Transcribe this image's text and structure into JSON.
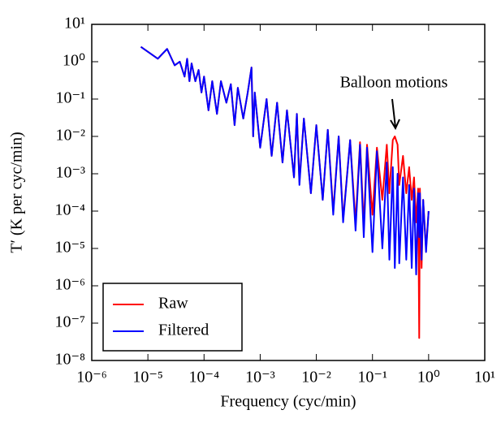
{
  "chart_data": {
    "type": "line",
    "xlabel": "Frequency (cyc/min)",
    "ylabel": "T′ (K per cyc/min)",
    "annotation": "Balloon motions",
    "xscale": "log",
    "yscale": "log",
    "xlim": [
      1e-06,
      10
    ],
    "ylim": [
      1e-08,
      10
    ],
    "xticks": [
      {
        "value": 1e-06,
        "label": "10⁻⁶"
      },
      {
        "value": 1e-05,
        "label": "10⁻⁵"
      },
      {
        "value": 0.0001,
        "label": "10⁻⁴"
      },
      {
        "value": 0.001,
        "label": "10⁻³"
      },
      {
        "value": 0.01,
        "label": "10⁻²"
      },
      {
        "value": 0.1,
        "label": "10⁻¹"
      },
      {
        "value": 1,
        "label": "10⁰"
      },
      {
        "value": 10,
        "label": "10¹"
      }
    ],
    "yticks": [
      {
        "value": 1e-08,
        "label": "10⁻⁸"
      },
      {
        "value": 1e-07,
        "label": "10⁻⁷"
      },
      {
        "value": 1e-06,
        "label": "10⁻⁶"
      },
      {
        "value": 1e-05,
        "label": "10⁻⁵"
      },
      {
        "value": 0.0001,
        "label": "10⁻⁴"
      },
      {
        "value": 0.001,
        "label": "10⁻³"
      },
      {
        "value": 0.01,
        "label": "10⁻²"
      },
      {
        "value": 0.1,
        "label": "10⁻¹"
      },
      {
        "value": 1,
        "label": "10⁰"
      },
      {
        "value": 10,
        "label": "10¹"
      }
    ],
    "legend": "lower left",
    "x": [
      7.5e-06,
      1.5e-05,
      2.2e-05,
      3e-05,
      3.7e-05,
      4.5e-05,
      5e-05,
      5.5e-05,
      6e-05,
      7e-05,
      8e-05,
      9e-05,
      0.0001,
      0.00012,
      0.00014,
      0.00017,
      0.0002,
      0.00025,
      0.0003,
      0.00035,
      0.0004,
      0.0005,
      0.0006,
      0.0007,
      0.00075,
      0.0008,
      0.001,
      0.0013,
      0.0016,
      0.002,
      0.0025,
      0.003,
      0.004,
      0.0045,
      0.005,
      0.006,
      0.008,
      0.01,
      0.013,
      0.016,
      0.02,
      0.025,
      0.03,
      0.04,
      0.05,
      0.06,
      0.07,
      0.08,
      0.1,
      0.12,
      0.15,
      0.18,
      0.2,
      0.23,
      0.25,
      0.28,
      0.3,
      0.35,
      0.4,
      0.45,
      0.5,
      0.55,
      0.6,
      0.65,
      0.68,
      0.7,
      0.75,
      0.8,
      0.9,
      1.0
    ],
    "series": [
      {
        "name": "Raw",
        "color": "#ff0000",
        "values": [
          2.5,
          1.2,
          2.2,
          0.8,
          1.0,
          0.4,
          1.2,
          0.3,
          0.9,
          0.3,
          0.6,
          0.15,
          0.4,
          0.05,
          0.3,
          0.04,
          0.3,
          0.08,
          0.25,
          0.02,
          0.2,
          0.03,
          0.15,
          0.7,
          0.01,
          0.15,
          0.005,
          0.1,
          0.003,
          0.08,
          0.002,
          0.05,
          0.0008,
          0.04,
          0.0006,
          0.03,
          0.0003,
          0.02,
          0.0002,
          0.015,
          0.0001,
          0.01,
          6e-05,
          0.008,
          5e-05,
          0.007,
          4e-05,
          0.006,
          8e-05,
          0.005,
          0.0002,
          0.006,
          0.0003,
          0.008,
          0.01,
          0.006,
          0.0005,
          0.003,
          0.0003,
          0.0015,
          0.0002,
          0.0008,
          5e-05,
          0.0004,
          4e-08,
          0.0004,
          3e-06,
          0.0002,
          1e-05,
          0.0001
        ]
      },
      {
        "name": "Filtered",
        "color": "#0000ff",
        "values": [
          2.5,
          1.2,
          2.2,
          0.8,
          1.0,
          0.4,
          1.2,
          0.3,
          0.9,
          0.3,
          0.6,
          0.15,
          0.4,
          0.05,
          0.3,
          0.04,
          0.3,
          0.08,
          0.25,
          0.02,
          0.2,
          0.03,
          0.15,
          0.7,
          0.01,
          0.15,
          0.005,
          0.1,
          0.003,
          0.08,
          0.002,
          0.05,
          0.0008,
          0.04,
          0.0005,
          0.03,
          0.0003,
          0.02,
          0.0002,
          0.015,
          8e-05,
          0.01,
          5e-05,
          0.008,
          3e-05,
          0.006,
          2e-05,
          0.005,
          8e-06,
          0.004,
          1e-05,
          0.002,
          5e-06,
          0.0015,
          3e-06,
          0.001,
          4e-06,
          0.0008,
          5e-06,
          0.0005,
          3e-06,
          0.0004,
          2e-06,
          0.0003,
          2e-05,
          0.0003,
          5e-06,
          0.0002,
          8e-06,
          0.0001
        ]
      }
    ]
  }
}
